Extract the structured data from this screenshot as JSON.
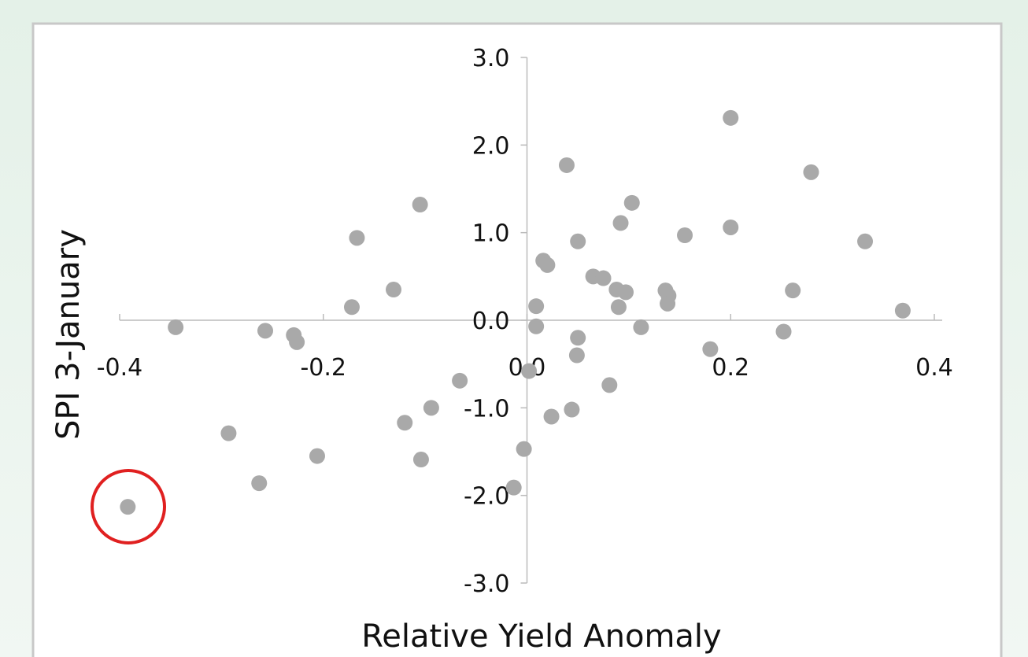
{
  "chart_data": {
    "type": "scatter",
    "x_label": "Relative Yield  Anomaly",
    "y_label": "SPI 3-January",
    "color": "#a9a9a9",
    "xlim": [
      -0.4,
      0.4
    ],
    "ylim": [
      -3,
      3
    ],
    "xticks": [
      -0.4,
      -0.2,
      {
        "value": 0,
        "label": "0.0"
      },
      0.2,
      0.4
    ],
    "yticks": [
      {
        "value": 3,
        "label": "3.0"
      },
      {
        "value": 2,
        "label": "2.0"
      },
      {
        "value": 1,
        "label": "1.0"
      },
      {
        "value": 0,
        "label": "0.0"
      },
      {
        "value": -1,
        "label": "-1.0"
      },
      {
        "value": -2,
        "label": "-2.0"
      },
      {
        "value": -3,
        "label": "-3.0"
      }
    ],
    "x": [
      -0.345,
      -0.257,
      -0.229,
      -0.226,
      -0.293,
      -0.263,
      -0.392,
      -0.206,
      -0.172,
      -0.167,
      -0.131,
      -0.105,
      -0.12,
      -0.104,
      -0.094,
      -0.066,
      -0.013,
      -0.003,
      0.002,
      0.009,
      0.009,
      0.016,
      0.02,
      0.024,
      0.039,
      0.044,
      0.05,
      0.05,
      0.049,
      0.065,
      0.075,
      0.081,
      0.088,
      0.09,
      0.092,
      0.097,
      0.103,
      0.112,
      0.136,
      0.139,
      0.138,
      0.155,
      0.18,
      0.2,
      0.2,
      0.252,
      0.261,
      0.279,
      0.332,
      0.369
    ],
    "values": [
      -0.08,
      -0.12,
      -0.17,
      -0.25,
      -1.29,
      -1.86,
      -2.13,
      -1.55,
      0.15,
      0.94,
      0.35,
      1.32,
      -1.17,
      -1.59,
      -1.0,
      -0.69,
      -1.91,
      -1.47,
      -0.58,
      0.16,
      -0.07,
      0.68,
      0.63,
      -1.1,
      1.77,
      -1.02,
      0.9,
      -0.2,
      -0.4,
      0.5,
      0.48,
      -0.74,
      0.35,
      0.15,
      1.11,
      0.32,
      1.34,
      -0.08,
      0.34,
      0.28,
      0.19,
      0.97,
      -0.33,
      2.31,
      1.06,
      -0.13,
      0.34,
      1.69,
      0.9,
      0.11
    ]
  }
}
